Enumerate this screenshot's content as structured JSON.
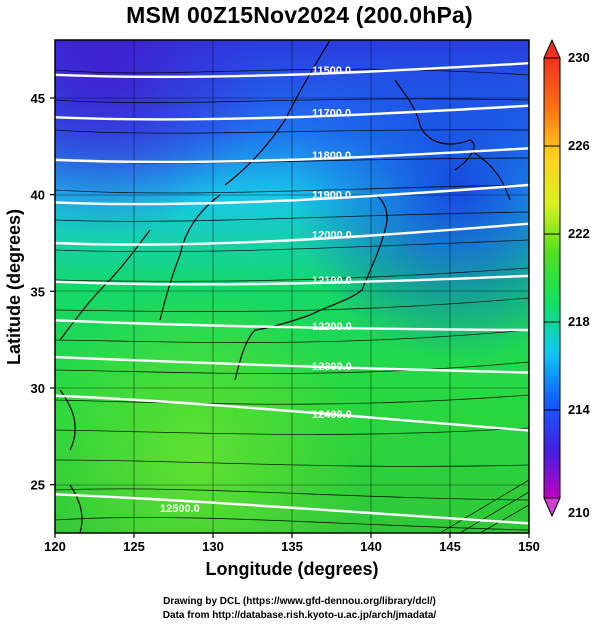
{
  "title": "MSM 00Z15Nov2024 (200.0hPa)",
  "credits": {
    "line1": "Drawing by DCL (https://www.gfd-dennou.org/library/dcl/)",
    "line2": "Data from http://database.rish.kyoto-u.ac.jp/arch/jmadata/"
  },
  "colors": {
    "colorbar_stops": [
      "#c000c0",
      "#4020e0",
      "#1060ff",
      "#10c8f0",
      "#10e060",
      "#50e020",
      "#d8f020",
      "#ffd020",
      "#ff7010",
      "#f03020"
    ],
    "coast": "#000000",
    "contour": "#ffffff",
    "arrows": "#000000",
    "grid": "#000000"
  },
  "chart_data": {
    "type": "map",
    "xlabel": "Longitude (degrees)",
    "ylabel": "Latitude (degrees)",
    "xlim": [
      120,
      150
    ],
    "ylim": [
      22.5,
      48
    ],
    "xticks": [
      120,
      125,
      130,
      135,
      140,
      145,
      150
    ],
    "yticks": [
      25,
      30,
      35,
      40,
      45
    ],
    "grid": true,
    "colorbar": {
      "min": 210,
      "max": 230,
      "ticks": [
        210,
        214,
        218,
        222,
        226,
        230
      ]
    },
    "contours": [
      {
        "label": "11500.0",
        "lat_left": 46.2,
        "lat_right": 46.8
      },
      {
        "label": "11700.0",
        "lat_left": 44.0,
        "lat_right": 44.6
      },
      {
        "label": "11800.0",
        "lat_left": 41.8,
        "lat_right": 42.4
      },
      {
        "label": "11900.0",
        "lat_left": 39.6,
        "lat_right": 40.5
      },
      {
        "label": "12000.0",
        "lat_left": 37.5,
        "lat_right": 38.5
      },
      {
        "label": "12100.0",
        "lat_left": 35.5,
        "lat_right": 35.8
      },
      {
        "label": "12200.0",
        "lat_left": 33.5,
        "lat_right": 33.0
      },
      {
        "label": "12300.0",
        "lat_left": 31.6,
        "lat_right": 30.8
      },
      {
        "label": "12400.0",
        "lat_left": 29.6,
        "lat_right": 27.8
      },
      {
        "label": "12500.0",
        "lat_left": 24.5,
        "lat_right": 23.0
      }
    ]
  }
}
